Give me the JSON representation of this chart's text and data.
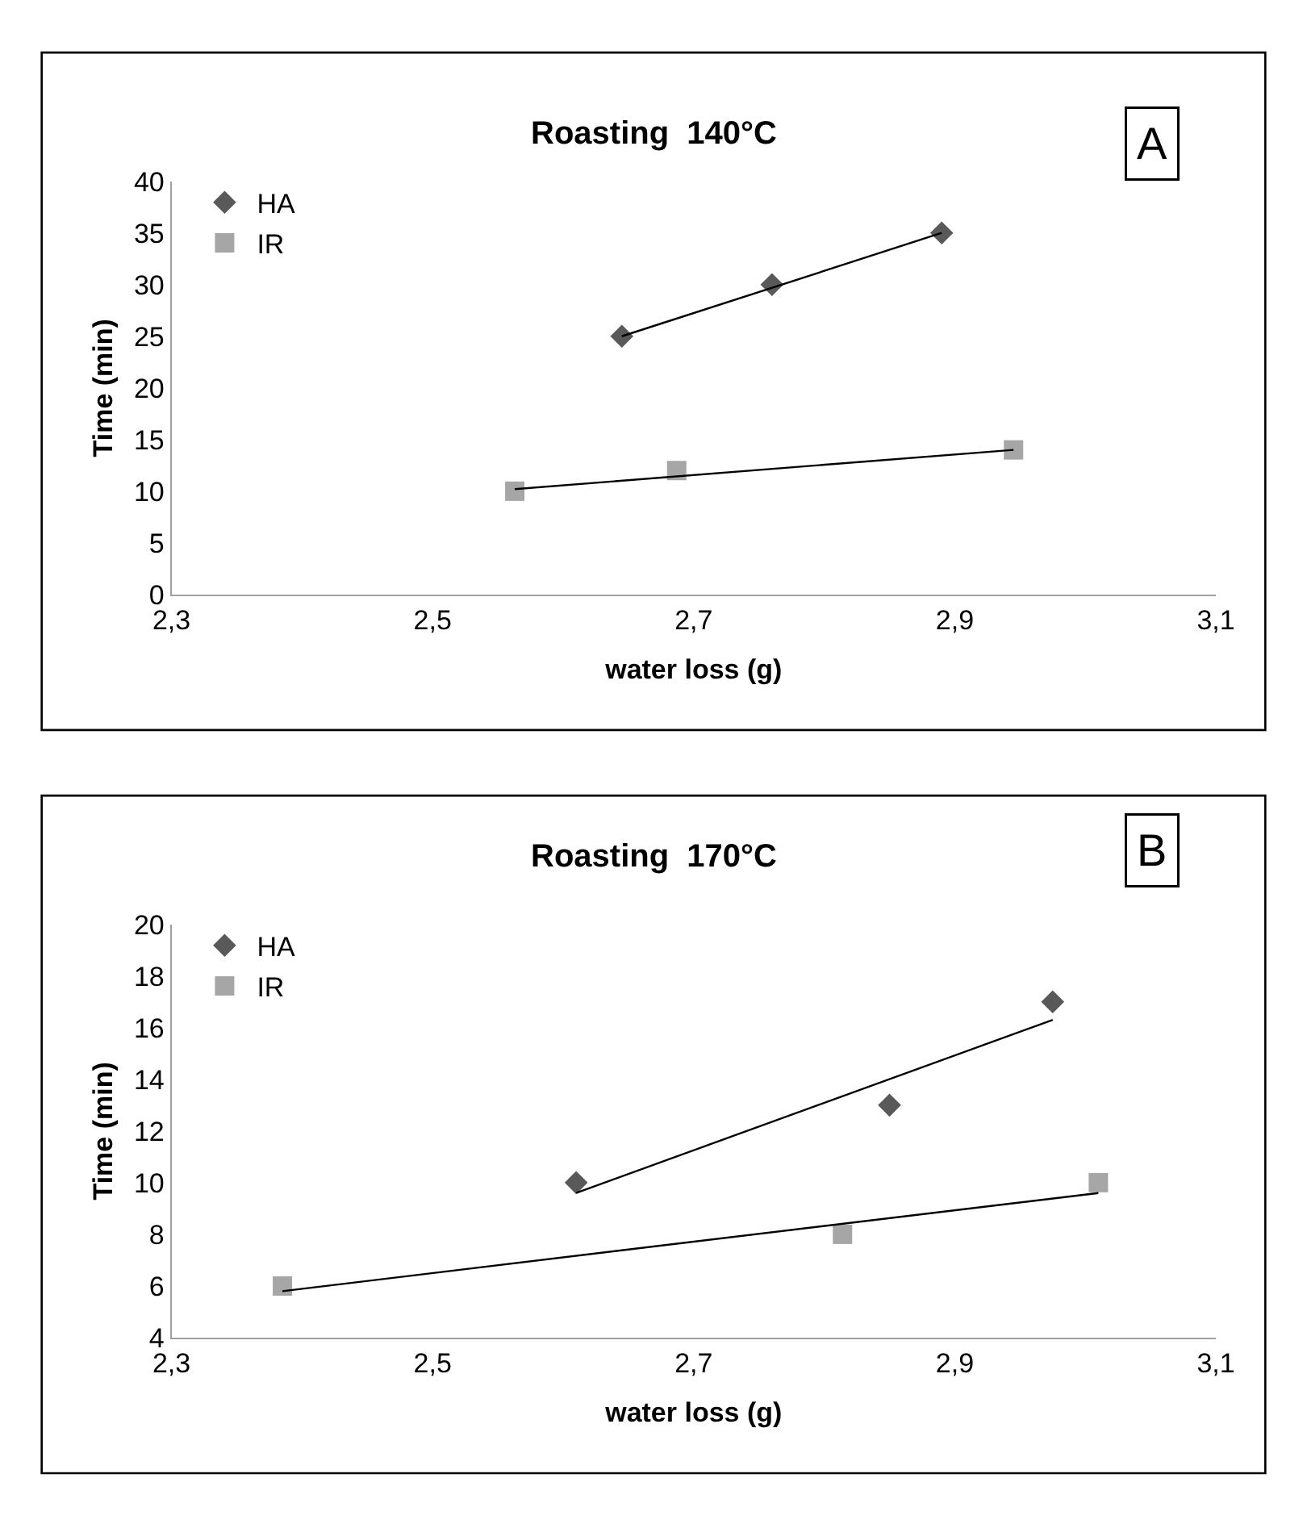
{
  "chart_data": [
    {
      "type": "scatter",
      "title": "Roasting  140°C",
      "xlabel": "water loss (g)",
      "ylabel": "Time (min)",
      "annotations": [
        "A"
      ],
      "xlim": [
        2.3,
        3.1
      ],
      "xticks": [
        {
          "value": 2.3,
          "label": "2,3"
        },
        {
          "value": 2.5,
          "label": "2,5"
        },
        {
          "value": 2.7,
          "label": "2,7"
        },
        {
          "value": 2.9,
          "label": "2,9"
        },
        {
          "value": 3.1,
          "label": "3,1"
        }
      ],
      "ylim": [
        0,
        40
      ],
      "yticks": [
        0,
        5,
        10,
        15,
        20,
        25,
        30,
        35,
        40
      ],
      "legend": "top left",
      "series": [
        {
          "name": "HA",
          "color": "#595959",
          "marker": "diamond",
          "x": [
            2.645,
            2.76,
            2.89
          ],
          "values": [
            25,
            30,
            35
          ]
        },
        {
          "name": "IR",
          "color": "#a6a6a6",
          "marker": "square",
          "x": [
            2.563,
            2.687,
            2.945
          ],
          "values": [
            10,
            12,
            14
          ]
        },
        {
          "type": "line",
          "color": "#000000",
          "marker": "none",
          "x": [
            2.645,
            2.89
          ],
          "values": [
            25,
            35
          ]
        },
        {
          "type": "line",
          "color": "#000000",
          "marker": "none",
          "x": [
            2.563,
            2.945
          ],
          "values": [
            10.2,
            14
          ]
        }
      ]
    },
    {
      "type": "scatter",
      "title": "Roasting  170°C",
      "xlabel": "water loss (g)",
      "ylabel": "Time (min)",
      "annotations": [
        "B"
      ],
      "xlim": [
        2.3,
        3.1
      ],
      "xticks": [
        {
          "value": 2.3,
          "label": "2,3"
        },
        {
          "value": 2.5,
          "label": "2,5"
        },
        {
          "value": 2.7,
          "label": "2,7"
        },
        {
          "value": 2.9,
          "label": "2,9"
        },
        {
          "value": 3.1,
          "label": "3,1"
        }
      ],
      "ylim": [
        4,
        20
      ],
      "yticks": [
        4,
        6,
        8,
        10,
        12,
        14,
        16,
        18,
        20
      ],
      "legend": "top left",
      "series": [
        {
          "name": "HA",
          "color": "#595959",
          "marker": "diamond",
          "x": [
            2.61,
            2.85,
            2.975
          ],
          "values": [
            10,
            13,
            17
          ]
        },
        {
          "name": "IR",
          "color": "#a6a6a6",
          "marker": "square",
          "x": [
            2.385,
            2.814,
            3.01
          ],
          "values": [
            6,
            8,
            10
          ]
        },
        {
          "type": "line",
          "color": "#000000",
          "marker": "none",
          "x": [
            2.61,
            2.975
          ],
          "values": [
            9.6,
            16.3
          ]
        },
        {
          "type": "line",
          "color": "#000000",
          "marker": "none",
          "x": [
            2.385,
            3.01
          ],
          "values": [
            5.8,
            9.6
          ]
        }
      ]
    }
  ]
}
